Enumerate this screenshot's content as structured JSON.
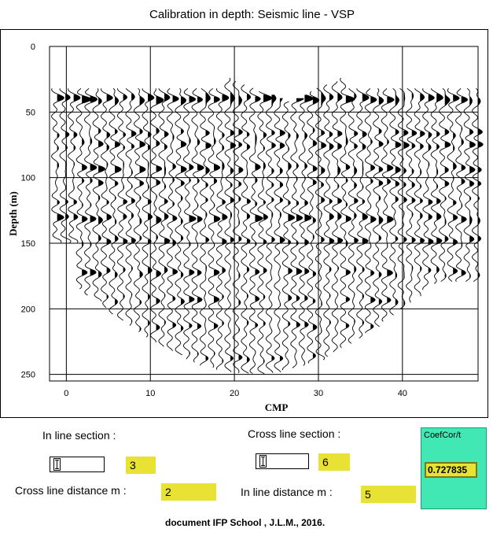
{
  "title": "Calibration in depth:  Seismic line - VSP",
  "chart_data": {
    "type": "seismic-wiggle",
    "ylabel": "Depth (m)",
    "xlabel": "CMP",
    "y_ticks": [
      "0",
      "50",
      "100",
      "150",
      "200",
      "250"
    ],
    "x_ticks": [
      "0",
      "10",
      "20",
      "30",
      "40"
    ],
    "ylim": [
      0,
      255
    ],
    "xlim": [
      -2,
      49
    ],
    "grid": true
  },
  "controls": {
    "inline_section_label": "In line section :",
    "inline_section_value": "3",
    "crossline_section_label": "Cross line section :",
    "crossline_section_value": "6",
    "crossline_distance_label": "Cross line distance m :",
    "crossline_distance_value": "2",
    "inline_distance_label": "In line distance m :",
    "inline_distance_value": "5"
  },
  "coef": {
    "label": "CoefCor/t",
    "value": "0.727835"
  },
  "footer": "document IFP School , J.L.M., 2016.",
  "colors": {
    "field_yellow": "#e8e234",
    "coef_panel": "#41e8b3"
  }
}
